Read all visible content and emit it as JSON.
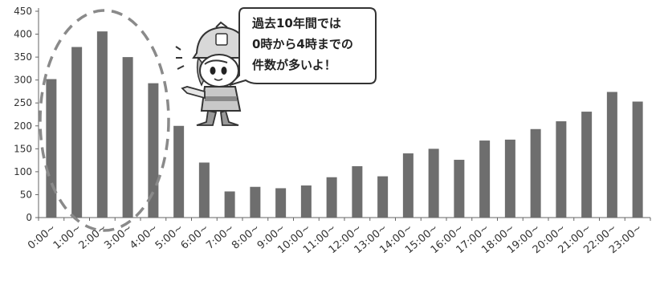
{
  "chart_data": {
    "type": "bar",
    "categories": [
      "0:00~",
      "1:00~",
      "2:00~",
      "3:00~",
      "4:00~",
      "5:00~",
      "6:00~",
      "7:00~",
      "8:00~",
      "9:00~",
      "10:00~",
      "11:00~",
      "12:00~",
      "13:00~",
      "14:00~",
      "15:00~",
      "16:00~",
      "17:00~",
      "18:00~",
      "19:00~",
      "20:00~",
      "21:00~",
      "22:00~",
      "23:00~"
    ],
    "values": [
      302,
      372,
      406,
      350,
      293,
      200,
      120,
      57,
      67,
      64,
      70,
      88,
      112,
      90,
      140,
      150,
      126,
      168,
      170,
      193,
      210,
      231,
      274,
      253
    ],
    "ylim": [
      0,
      450
    ],
    "yticks": [
      0,
      50,
      100,
      150,
      200,
      250,
      300,
      350,
      400,
      450
    ],
    "grid": false,
    "bar_color": "#6e6e6e",
    "highlight_color": "#8a8a8a"
  },
  "callout": {
    "lines": [
      "過去10年間では",
      "0時から4時までの",
      "件数が多いよ！"
    ]
  }
}
